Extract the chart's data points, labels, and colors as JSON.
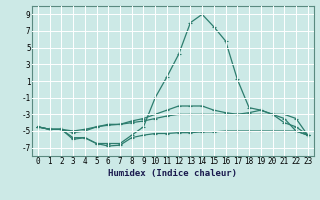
{
  "xlabel": "Humidex (Indice chaleur)",
  "background_color": "#cce9e6",
  "grid_color": "#ffffff",
  "line_color": "#2d7d6e",
  "x_values": [
    0,
    1,
    2,
    3,
    4,
    5,
    6,
    7,
    8,
    9,
    10,
    11,
    12,
    13,
    14,
    15,
    16,
    17,
    18,
    19,
    20,
    21,
    22,
    23
  ],
  "line1": [
    -4.5,
    -4.8,
    -4.8,
    -6.0,
    -5.8,
    -6.5,
    -6.8,
    -6.7,
    -5.8,
    -5.5,
    -5.3,
    -5.3,
    -5.2,
    -5.2,
    -5.1,
    -5.1,
    -5.0,
    -5.0,
    -5.0,
    -5.0,
    -5.0,
    -5.0,
    -5.0,
    -5.5
  ],
  "line2": [
    -4.5,
    -4.8,
    -4.8,
    -5.8,
    -5.8,
    -6.5,
    -6.5,
    -6.5,
    -5.5,
    -4.5,
    -1.0,
    1.5,
    4.2,
    8.0,
    9.0,
    7.5,
    5.8,
    1.2,
    -2.2,
    -2.5,
    -3.0,
    -3.5,
    -5.0,
    -5.5
  ],
  "line3": [
    -4.5,
    -4.8,
    -4.8,
    -5.2,
    -5.0,
    -4.5,
    -4.2,
    -4.2,
    -3.8,
    -3.5,
    -3.0,
    -2.5,
    -2.0,
    -2.0,
    -2.0,
    -2.5,
    -2.8,
    -3.0,
    -2.8,
    -2.5,
    -3.0,
    -3.0,
    -3.5,
    -5.5
  ],
  "line4": [
    -4.5,
    -4.8,
    -4.8,
    -5.0,
    -4.8,
    -4.5,
    -4.3,
    -4.2,
    -4.0,
    -3.8,
    -3.5,
    -3.2,
    -3.0,
    -3.0,
    -3.0,
    -3.0,
    -3.0,
    -3.0,
    -3.0,
    -3.0,
    -3.0,
    -4.0,
    -4.5,
    -5.5
  ],
  "ylim": [
    -8,
    10
  ],
  "xlim": [
    -0.5,
    23.5
  ],
  "yticks": [
    -7,
    -5,
    -3,
    -1,
    1,
    3,
    5,
    7,
    9
  ],
  "xticks": [
    0,
    1,
    2,
    3,
    4,
    5,
    6,
    7,
    8,
    9,
    10,
    11,
    12,
    13,
    14,
    15,
    16,
    17,
    18,
    19,
    20,
    21,
    22,
    23
  ],
  "xlabel_fontsize": 6.5,
  "tick_fontsize": 5.5,
  "linewidth": 0.9,
  "markersize": 3.0
}
